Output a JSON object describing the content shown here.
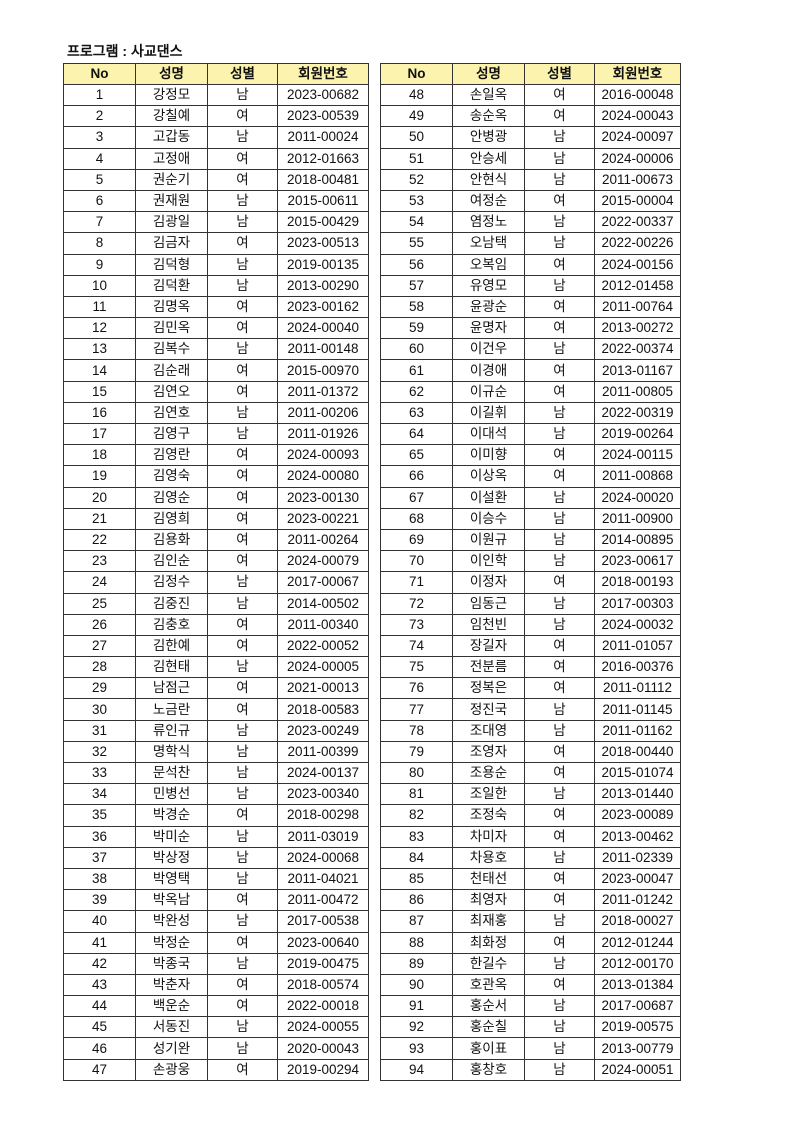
{
  "title": "프로그램 : 사교댄스",
  "header_color": "#fbf3ae",
  "columns": [
    "No",
    "성명",
    "성별",
    "회원번호"
  ],
  "left_rows": [
    [
      "1",
      "강정모",
      "남",
      "2023-00682"
    ],
    [
      "2",
      "강칠예",
      "여",
      "2023-00539"
    ],
    [
      "3",
      "고갑동",
      "남",
      "2011-00024"
    ],
    [
      "4",
      "고정애",
      "여",
      "2012-01663"
    ],
    [
      "5",
      "권순기",
      "여",
      "2018-00481"
    ],
    [
      "6",
      "권재원",
      "남",
      "2015-00611"
    ],
    [
      "7",
      "김광일",
      "남",
      "2015-00429"
    ],
    [
      "8",
      "김금자",
      "여",
      "2023-00513"
    ],
    [
      "9",
      "김덕형",
      "남",
      "2019-00135"
    ],
    [
      "10",
      "김덕환",
      "남",
      "2013-00290"
    ],
    [
      "11",
      "김명옥",
      "여",
      "2023-00162"
    ],
    [
      "12",
      "김민옥",
      "여",
      "2024-00040"
    ],
    [
      "13",
      "김복수",
      "남",
      "2011-00148"
    ],
    [
      "14",
      "김순래",
      "여",
      "2015-00970"
    ],
    [
      "15",
      "김연오",
      "여",
      "2011-01372"
    ],
    [
      "16",
      "김연호",
      "남",
      "2011-00206"
    ],
    [
      "17",
      "김영구",
      "남",
      "2011-01926"
    ],
    [
      "18",
      "김영란",
      "여",
      "2024-00093"
    ],
    [
      "19",
      "김영숙",
      "여",
      "2024-00080"
    ],
    [
      "20",
      "김영순",
      "여",
      "2023-00130"
    ],
    [
      "21",
      "김영희",
      "여",
      "2023-00221"
    ],
    [
      "22",
      "김용화",
      "여",
      "2011-00264"
    ],
    [
      "23",
      "김인순",
      "여",
      "2024-00079"
    ],
    [
      "24",
      "김정수",
      "남",
      "2017-00067"
    ],
    [
      "25",
      "김중진",
      "남",
      "2014-00502"
    ],
    [
      "26",
      "김충호",
      "여",
      "2011-00340"
    ],
    [
      "27",
      "김한예",
      "여",
      "2022-00052"
    ],
    [
      "28",
      "김현태",
      "남",
      "2024-00005"
    ],
    [
      "29",
      "남점근",
      "여",
      "2021-00013"
    ],
    [
      "30",
      "노금란",
      "여",
      "2018-00583"
    ],
    [
      "31",
      "류인규",
      "남",
      "2023-00249"
    ],
    [
      "32",
      "명학식",
      "남",
      "2011-00399"
    ],
    [
      "33",
      "문석찬",
      "남",
      "2024-00137"
    ],
    [
      "34",
      "민병선",
      "남",
      "2023-00340"
    ],
    [
      "35",
      "박경순",
      "여",
      "2018-00298"
    ],
    [
      "36",
      "박미순",
      "남",
      "2011-03019"
    ],
    [
      "37",
      "박상정",
      "남",
      "2024-00068"
    ],
    [
      "38",
      "박영택",
      "남",
      "2011-04021"
    ],
    [
      "39",
      "박옥남",
      "여",
      "2011-00472"
    ],
    [
      "40",
      "박완성",
      "남",
      "2017-00538"
    ],
    [
      "41",
      "박정순",
      "여",
      "2023-00640"
    ],
    [
      "42",
      "박종국",
      "남",
      "2019-00475"
    ],
    [
      "43",
      "박춘자",
      "여",
      "2018-00574"
    ],
    [
      "44",
      "백운순",
      "여",
      "2022-00018"
    ],
    [
      "45",
      "서동진",
      "남",
      "2024-00055"
    ],
    [
      "46",
      "성기완",
      "남",
      "2020-00043"
    ],
    [
      "47",
      "손광웅",
      "여",
      "2019-00294"
    ]
  ],
  "right_rows": [
    [
      "48",
      "손일옥",
      "여",
      "2016-00048"
    ],
    [
      "49",
      "송순옥",
      "여",
      "2024-00043"
    ],
    [
      "50",
      "안병광",
      "남",
      "2024-00097"
    ],
    [
      "51",
      "안승세",
      "남",
      "2024-00006"
    ],
    [
      "52",
      "안현식",
      "남",
      "2011-00673"
    ],
    [
      "53",
      "여정순",
      "여",
      "2015-00004"
    ],
    [
      "54",
      "염정노",
      "남",
      "2022-00337"
    ],
    [
      "55",
      "오남택",
      "남",
      "2022-00226"
    ],
    [
      "56",
      "오복임",
      "여",
      "2024-00156"
    ],
    [
      "57",
      "유영모",
      "남",
      "2012-01458"
    ],
    [
      "58",
      "윤광순",
      "여",
      "2011-00764"
    ],
    [
      "59",
      "윤명자",
      "여",
      "2013-00272"
    ],
    [
      "60",
      "이건우",
      "남",
      "2022-00374"
    ],
    [
      "61",
      "이경애",
      "여",
      "2013-01167"
    ],
    [
      "62",
      "이규순",
      "여",
      "2011-00805"
    ],
    [
      "63",
      "이길휘",
      "남",
      "2022-00319"
    ],
    [
      "64",
      "이대석",
      "남",
      "2019-00264"
    ],
    [
      "65",
      "이미향",
      "여",
      "2024-00115"
    ],
    [
      "66",
      "이상옥",
      "여",
      "2011-00868"
    ],
    [
      "67",
      "이설환",
      "남",
      "2024-00020"
    ],
    [
      "68",
      "이승수",
      "남",
      "2011-00900"
    ],
    [
      "69",
      "이원규",
      "남",
      "2014-00895"
    ],
    [
      "70",
      "이인학",
      "남",
      "2023-00617"
    ],
    [
      "71",
      "이정자",
      "여",
      "2018-00193"
    ],
    [
      "72",
      "임동근",
      "남",
      "2017-00303"
    ],
    [
      "73",
      "임천빈",
      "남",
      "2024-00032"
    ],
    [
      "74",
      "장길자",
      "여",
      "2011-01057"
    ],
    [
      "75",
      "전분름",
      "여",
      "2016-00376"
    ],
    [
      "76",
      "정복은",
      "여",
      "2011-01112"
    ],
    [
      "77",
      "정진국",
      "남",
      "2011-01145"
    ],
    [
      "78",
      "조대영",
      "남",
      "2011-01162"
    ],
    [
      "79",
      "조영자",
      "여",
      "2018-00440"
    ],
    [
      "80",
      "조용순",
      "여",
      "2015-01074"
    ],
    [
      "81",
      "조일한",
      "남",
      "2013-01440"
    ],
    [
      "82",
      "조정숙",
      "여",
      "2023-00089"
    ],
    [
      "83",
      "차미자",
      "여",
      "2013-00462"
    ],
    [
      "84",
      "차용호",
      "남",
      "2011-02339"
    ],
    [
      "85",
      "천태선",
      "여",
      "2023-00047"
    ],
    [
      "86",
      "최영자",
      "여",
      "2011-01242"
    ],
    [
      "87",
      "최재홍",
      "남",
      "2018-00027"
    ],
    [
      "88",
      "최화정",
      "여",
      "2012-01244"
    ],
    [
      "89",
      "한길수",
      "남",
      "2012-00170"
    ],
    [
      "90",
      "호관옥",
      "여",
      "2013-01384"
    ],
    [
      "91",
      "홍순서",
      "남",
      "2017-00687"
    ],
    [
      "92",
      "홍순칠",
      "남",
      "2019-00575"
    ],
    [
      "93",
      "홍이표",
      "남",
      "2013-00779"
    ],
    [
      "94",
      "홍창호",
      "남",
      "2024-00051"
    ]
  ]
}
